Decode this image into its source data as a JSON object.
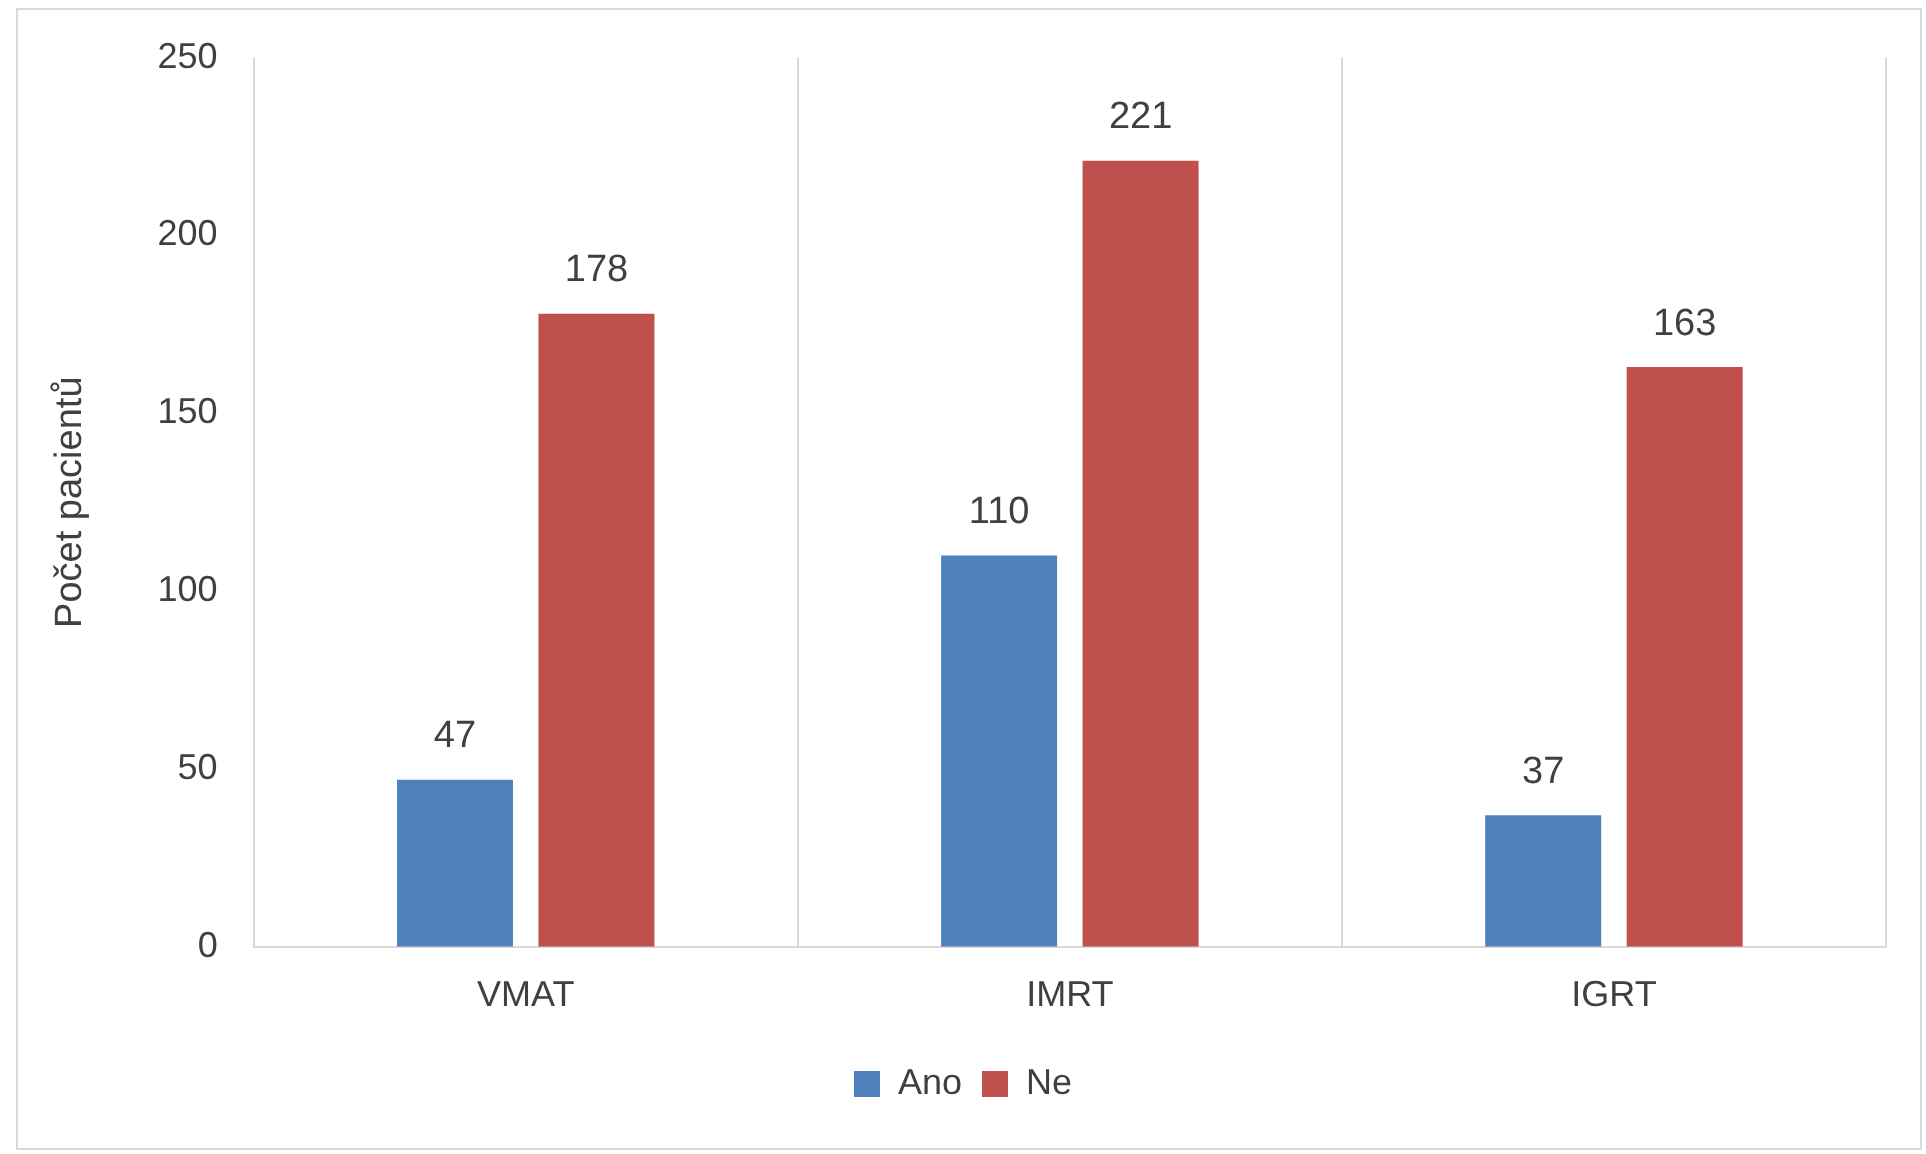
{
  "chart_data": {
    "type": "bar",
    "ylabel": "Počet pacientů",
    "categories": [
      "VMAT",
      "IMRT",
      "IGRT"
    ],
    "series": [
      {
        "name": "Ano",
        "color": "#4f81bd",
        "values": [
          47,
          110,
          37
        ]
      },
      {
        "name": "Ne",
        "color": "#c0504d",
        "values": [
          178,
          221,
          163
        ]
      }
    ],
    "ylim": [
      0,
      250
    ],
    "yticks": [
      0,
      50,
      100,
      150,
      200,
      250
    ],
    "grid": "x",
    "legend": "bottom",
    "data_labels": true
  }
}
